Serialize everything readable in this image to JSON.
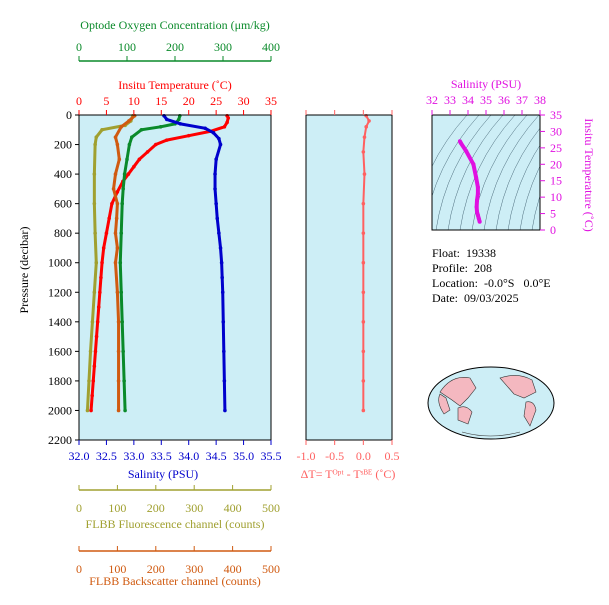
{
  "colors": {
    "oxygen": "#0a8a2a",
    "temperature": "#ff0000",
    "salinity": "#0000cc",
    "fluorescence": "#a0a030",
    "backscatter": "#d05a10",
    "delta_t": "#ff6060",
    "panel_bg": "#cdeef6",
    "magenta": "#e010e0"
  },
  "info": {
    "float": "Float:  19338",
    "profile": "Profile:  208",
    "location": "Location:  -0.0°S   0.0°E",
    "date": "Date:  09/03/2025"
  },
  "chart_data": [
    {
      "type": "line",
      "title": "",
      "ylabel": "Pressure (decibar)",
      "ylim": [
        2200,
        0
      ],
      "yticks": [
        "0",
        "200",
        "400",
        "600",
        "800",
        "1000",
        "1200",
        "1400",
        "1600",
        "1800",
        "2000",
        "2200"
      ],
      "axes": {
        "oxygen": {
          "label": "Optode Oxygen Concentration (μm/kg)",
          "range": [
            0,
            400
          ],
          "ticks": [
            "0",
            "100",
            "200",
            "300",
            "400"
          ]
        },
        "temperature": {
          "label": "Insitu Temperature (˚C)",
          "range": [
            0,
            35
          ],
          "ticks": [
            "0",
            "5",
            "10",
            "15",
            "20",
            "25",
            "30",
            "35"
          ]
        },
        "salinity": {
          "label": "Salinity (PSU)",
          "range": [
            32.0,
            35.5
          ],
          "ticks": [
            "32.0",
            "32.5",
            "33.0",
            "33.5",
            "34.0",
            "34.5",
            "35.0",
            "35.5"
          ]
        },
        "fluorescence": {
          "label": "FLBB Fluorescence channel (counts)",
          "range": [
            0,
            500
          ],
          "ticks": [
            "0",
            "100",
            "200",
            "300",
            "400",
            "500"
          ]
        },
        "backscatter": {
          "label": "FLBB Backscatter channel (counts)",
          "range": [
            0,
            500
          ],
          "ticks": [
            "0",
            "100",
            "200",
            "300",
            "400",
            "500"
          ]
        }
      },
      "series": [
        {
          "key": "temperature",
          "points": [
            [
              27.0,
              5
            ],
            [
              27.2,
              20
            ],
            [
              27.0,
              50
            ],
            [
              26.5,
              80
            ],
            [
              24.0,
              110
            ],
            [
              20.0,
              140
            ],
            [
              16.0,
              170
            ],
            [
              14.0,
              200
            ],
            [
              12.5,
              250
            ],
            [
              11.0,
              300
            ],
            [
              10.0,
              350
            ],
            [
              9.0,
              400
            ],
            [
              8.0,
              450
            ],
            [
              7.0,
              520
            ],
            [
              6.0,
              600
            ],
            [
              5.5,
              700
            ],
            [
              5.0,
              800
            ],
            [
              4.5,
              900
            ],
            [
              4.2,
              1000
            ],
            [
              4.0,
              1100
            ],
            [
              3.8,
              1200
            ],
            [
              3.6,
              1300
            ],
            [
              3.4,
              1400
            ],
            [
              3.2,
              1500
            ],
            [
              3.0,
              1600
            ],
            [
              2.8,
              1700
            ],
            [
              2.6,
              1800
            ],
            [
              2.4,
              1900
            ],
            [
              2.2,
              2000
            ]
          ]
        },
        {
          "key": "oxygen",
          "points": [
            [
              210,
              5
            ],
            [
              208,
              30
            ],
            [
              200,
              60
            ],
            [
              170,
              80
            ],
            [
              130,
              100
            ],
            [
              110,
              150
            ],
            [
              105,
              200
            ],
            [
              100,
              300
            ],
            [
              95,
              400
            ],
            [
              92,
              500
            ],
            [
              90,
              600
            ],
            [
              88,
              800
            ],
            [
              86,
              1000
            ],
            [
              88,
              1200
            ],
            [
              90,
              1400
            ],
            [
              92,
              1600
            ],
            [
              94,
              1800
            ],
            [
              96,
              2000
            ]
          ]
        },
        {
          "key": "salinity",
          "points": [
            [
              33.55,
              5
            ],
            [
              33.6,
              30
            ],
            [
              33.85,
              60
            ],
            [
              34.3,
              90
            ],
            [
              34.45,
              120
            ],
            [
              34.55,
              160
            ],
            [
              34.58,
              200
            ],
            [
              34.5,
              300
            ],
            [
              34.48,
              400
            ],
            [
              34.48,
              500
            ],
            [
              34.5,
              600
            ],
            [
              34.52,
              700
            ],
            [
              34.55,
              800
            ],
            [
              34.58,
              900
            ],
            [
              34.6,
              1000
            ],
            [
              34.61,
              1100
            ],
            [
              34.62,
              1200
            ],
            [
              34.63,
              1400
            ],
            [
              34.64,
              1600
            ],
            [
              34.65,
              1800
            ],
            [
              34.66,
              2000
            ]
          ]
        },
        {
          "key": "fluorescence",
          "points": [
            [
              140,
              5
            ],
            [
              135,
              40
            ],
            [
              120,
              70
            ],
            [
              60,
              100
            ],
            [
              45,
              150
            ],
            [
              42,
              200
            ],
            [
              40,
              400
            ],
            [
              40,
              600
            ],
            [
              42,
              800
            ],
            [
              45,
              1000
            ],
            [
              40,
              1200
            ],
            [
              35,
              1400
            ],
            [
              30,
              1600
            ],
            [
              26,
              1800
            ],
            [
              22,
              2000
            ]
          ]
        },
        {
          "key": "backscatter",
          "points": [
            [
              145,
              5
            ],
            [
              130,
              40
            ],
            [
              110,
              80
            ],
            [
              95,
              150
            ],
            [
              100,
              200
            ],
            [
              105,
              300
            ],
            [
              95,
              400
            ],
            [
              90,
              500
            ],
            [
              100,
              600
            ],
            [
              98,
              700
            ],
            [
              95,
              800
            ],
            [
              100,
              900
            ],
            [
              95,
              1000
            ],
            [
              100,
              1200
            ],
            [
              103,
              1400
            ],
            [
              103,
              1600
            ],
            [
              103,
              1800
            ],
            [
              103,
              2000
            ]
          ]
        }
      ]
    },
    {
      "type": "scatter",
      "xlabel": "ΔT= Tᴼᵖᵗ - Tˢᴮᴱ (˚C)",
      "xlim": [
        -1.0,
        0.5
      ],
      "xticks": [
        "-1.0",
        "-0.5",
        "0.0",
        "0.5"
      ],
      "ylim": [
        2200,
        0
      ],
      "points": [
        [
          0.05,
          5
        ],
        [
          0.1,
          40
        ],
        [
          0.05,
          80
        ],
        [
          0.02,
          150
        ],
        [
          0.0,
          250
        ],
        [
          0.02,
          400
        ],
        [
          0.0,
          600
        ],
        [
          0.0,
          800
        ],
        [
          0.0,
          1000
        ],
        [
          0.0,
          1200
        ],
        [
          0.0,
          1400
        ],
        [
          0.0,
          1600
        ],
        [
          0.0,
          1800
        ],
        [
          0.0,
          2000
        ]
      ]
    },
    {
      "type": "scatter",
      "xlabel": "Salinity (PSU)",
      "ylabel": "Insitu Temperature (˚C)",
      "xlim": [
        32,
        38
      ],
      "ylim": [
        0,
        35
      ],
      "xticks": [
        "32",
        "33",
        "34",
        "35",
        "36",
        "37",
        "38"
      ],
      "yticks": [
        "0",
        "5",
        "10",
        "15",
        "20",
        "25",
        "30",
        "35"
      ],
      "points": [
        [
          33.55,
          27
        ],
        [
          33.6,
          26.5
        ],
        [
          33.9,
          24
        ],
        [
          34.3,
          20
        ],
        [
          34.45,
          16
        ],
        [
          34.55,
          13
        ],
        [
          34.55,
          11
        ],
        [
          34.5,
          9
        ],
        [
          34.48,
          7
        ],
        [
          34.5,
          5.5
        ],
        [
          34.55,
          4.5
        ],
        [
          34.6,
          3.5
        ],
        [
          34.65,
          2.5
        ]
      ]
    }
  ]
}
